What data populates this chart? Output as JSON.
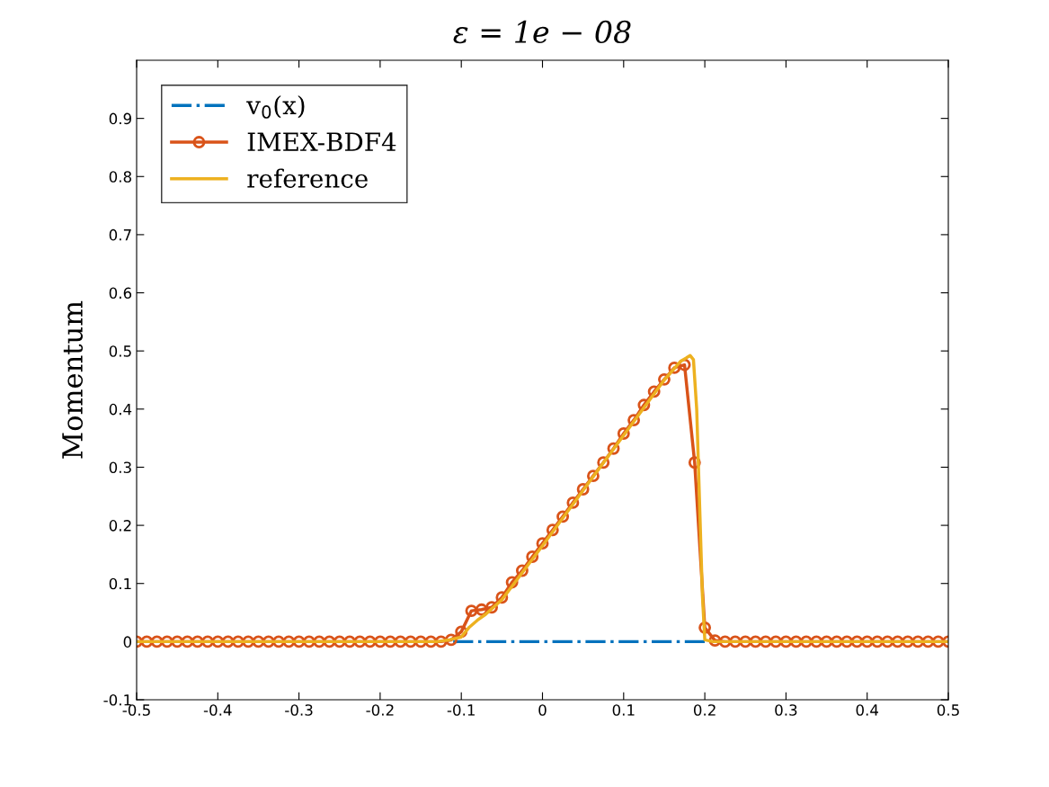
{
  "chart_data": {
    "type": "line",
    "title": "ε = 1e − 08",
    "ylabel": "Momentum",
    "xlim": [
      -0.5,
      0.5
    ],
    "ylim": [
      -0.1,
      1.0
    ],
    "xticks": [
      -0.5,
      -0.4,
      -0.3,
      -0.2,
      -0.1,
      0,
      0.1,
      0.2,
      0.3,
      0.4,
      0.5
    ],
    "yticks": [
      -0.1,
      0,
      0.1,
      0.2,
      0.3,
      0.4,
      0.5,
      0.6,
      0.7,
      0.8,
      0.9
    ],
    "legend": "top left",
    "grid": false,
    "series": [
      {
        "name": "v$_{0}$(x)",
        "color": "#0072bd",
        "line_style": "dashdot",
        "marker": "none",
        "x": [
          -0.11,
          0.205
        ],
        "values": [
          0,
          0
        ]
      },
      {
        "name": "IMEX-BDF4",
        "color": "#d95319",
        "line_style": "solid",
        "marker": "circle",
        "x": [
          -0.5,
          -0.4875,
          -0.475,
          -0.4625,
          -0.45,
          -0.4375,
          -0.425,
          -0.4125,
          -0.4,
          -0.3875,
          -0.375,
          -0.3625,
          -0.35,
          -0.3375,
          -0.325,
          -0.3125,
          -0.3,
          -0.2875,
          -0.275,
          -0.2625,
          -0.25,
          -0.2375,
          -0.225,
          -0.2125,
          -0.2,
          -0.1875,
          -0.175,
          -0.1625,
          -0.15,
          -0.1375,
          -0.125,
          -0.1125,
          -0.1,
          -0.0875,
          -0.075,
          -0.0625,
          -0.05,
          -0.0375,
          -0.025,
          -0.0125,
          0,
          0.0125,
          0.025,
          0.0375,
          0.05,
          0.0625,
          0.075,
          0.0875,
          0.1,
          0.1125,
          0.125,
          0.1375,
          0.15,
          0.1625,
          0.175,
          0.1875,
          0.2,
          0.2125,
          0.225,
          0.2375,
          0.25,
          0.2625,
          0.275,
          0.2875,
          0.3,
          0.3125,
          0.325,
          0.3375,
          0.35,
          0.3625,
          0.375,
          0.3875,
          0.4,
          0.4125,
          0.425,
          0.4375,
          0.45,
          0.4625,
          0.475,
          0.4875,
          0.5
        ],
        "values": [
          0,
          0,
          0,
          0,
          0,
          0,
          0,
          0,
          0,
          0,
          0,
          0,
          0,
          0,
          0,
          0,
          0,
          0,
          0,
          0,
          0,
          0,
          0,
          0,
          0,
          0,
          0,
          0,
          0,
          0,
          0,
          0.003,
          0.017,
          0.053,
          0.055,
          0.059,
          0.076,
          0.102,
          0.122,
          0.146,
          0.169,
          0.192,
          0.215,
          0.239,
          0.262,
          0.285,
          0.308,
          0.332,
          0.358,
          0.381,
          0.407,
          0.43,
          0.451,
          0.471,
          0.476,
          0.308,
          0.024,
          0.002,
          0,
          0,
          0,
          0,
          0,
          0,
          0,
          0,
          0,
          0,
          0,
          0,
          0,
          0,
          0,
          0,
          0,
          0,
          0,
          0,
          0,
          0,
          0
        ]
      },
      {
        "name": "reference",
        "color": "#edb120",
        "line_style": "solid",
        "marker": "none",
        "x": [
          -0.5,
          -0.13,
          -0.115,
          -0.1,
          -0.09,
          -0.08,
          -0.07,
          -0.05,
          0,
          0.05,
          0.1,
          0.15,
          0.17,
          0.182,
          0.186,
          0.19,
          0.197,
          0.2,
          0.21,
          0.5
        ],
        "values": [
          0,
          0,
          0.003,
          0.008,
          0.025,
          0.037,
          0.047,
          0.072,
          0.165,
          0.26,
          0.355,
          0.45,
          0.482,
          0.492,
          0.485,
          0.4,
          0.08,
          0.003,
          0,
          0
        ]
      }
    ]
  }
}
